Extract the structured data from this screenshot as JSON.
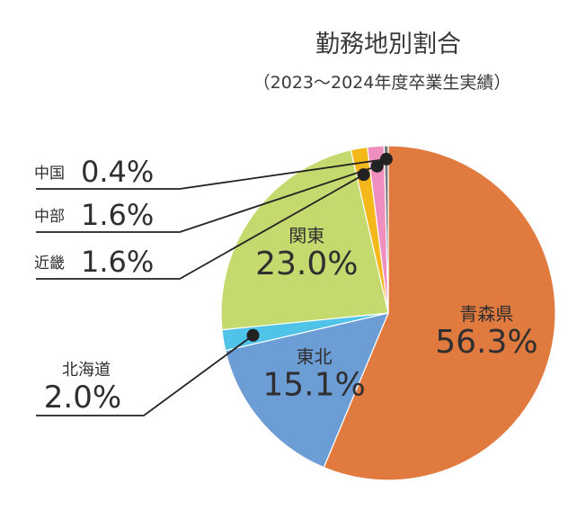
{
  "chart_data": {
    "type": "pie",
    "title": "勤務地別割合",
    "subtitle": "（2023～2024年度卒業生実績）",
    "slices": [
      {
        "label": "青森県",
        "value": 56.3,
        "value_text": "56.3%",
        "color": "#E07A3F"
      },
      {
        "label": "東北",
        "value": 15.1,
        "value_text": "15.1%",
        "color": "#6C9DD5"
      },
      {
        "label": "北海道",
        "value": 2.0,
        "value_text": "2.0%",
        "color": "#4FC3E8"
      },
      {
        "label": "関東",
        "value": 23.0,
        "value_text": "23.0%",
        "color": "#C5DA6E"
      },
      {
        "label": "近畿",
        "value": 1.6,
        "value_text": "1.6%",
        "color": "#F5B81A"
      },
      {
        "label": "中部",
        "value": 1.6,
        "value_text": "1.6%",
        "color": "#EE8FBF"
      },
      {
        "label": "中国",
        "value": 0.4,
        "value_text": "0.4%",
        "color": "#7A7A7A"
      }
    ]
  }
}
